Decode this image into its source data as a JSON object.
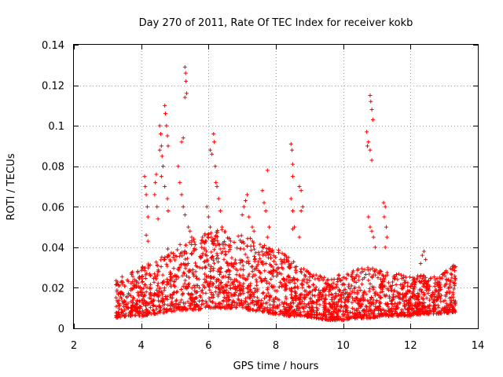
{
  "chart_data": {
    "type": "scatter",
    "title": "Day 270 of 2011, Rate Of TEC Index for receiver kokb",
    "xlabel": "GPS time / hours",
    "ylabel": "ROTI / TECUs",
    "xlim": [
      2,
      14
    ],
    "ylim": [
      0,
      0.14
    ],
    "xticks": [
      2,
      4,
      6,
      8,
      10,
      12,
      14
    ],
    "xtick_labels": [
      "2",
      "4",
      "6",
      "8",
      "10",
      "12",
      "14"
    ],
    "yticks": [
      0,
      0.02,
      0.04,
      0.06,
      0.08,
      0.1,
      0.12,
      0.14
    ],
    "ytick_labels": [
      "0",
      "0.02",
      "0.04",
      "0.06",
      "0.08",
      "0.1",
      "0.12",
      "0.14"
    ],
    "grid": true,
    "marker": "plus",
    "color": "#ff0000",
    "series": [
      {
        "name": "ROTI",
        "background_band": {
          "x_range": [
            3.25,
            13.35
          ],
          "envelope": [
            [
              3.3,
              0.005,
              0.025
            ],
            [
              3.6,
              0.006,
              0.027
            ],
            [
              4.0,
              0.006,
              0.03
            ],
            [
              4.4,
              0.007,
              0.035
            ],
            [
              4.8,
              0.008,
              0.04
            ],
            [
              5.2,
              0.009,
              0.042
            ],
            [
              5.6,
              0.009,
              0.045
            ],
            [
              6.0,
              0.01,
              0.048
            ],
            [
              6.4,
              0.01,
              0.05
            ],
            [
              6.8,
              0.01,
              0.047
            ],
            [
              7.2,
              0.009,
              0.045
            ],
            [
              7.6,
              0.008,
              0.042
            ],
            [
              8.0,
              0.007,
              0.04
            ],
            [
              8.4,
              0.006,
              0.035
            ],
            [
              8.8,
              0.006,
              0.03
            ],
            [
              9.2,
              0.005,
              0.027
            ],
            [
              9.6,
              0.004,
              0.025
            ],
            [
              10.0,
              0.004,
              0.027
            ],
            [
              10.4,
              0.005,
              0.03
            ],
            [
              10.8,
              0.005,
              0.03
            ],
            [
              11.2,
              0.006,
              0.028
            ],
            [
              11.6,
              0.006,
              0.027
            ],
            [
              12.0,
              0.006,
              0.026
            ],
            [
              12.4,
              0.007,
              0.027
            ],
            [
              12.8,
              0.007,
              0.025
            ],
            [
              13.3,
              0.008,
              0.032
            ]
          ]
        },
        "spikes": [
          [
            4.1,
            0.075
          ],
          [
            4.12,
            0.07
          ],
          [
            4.15,
            0.066
          ],
          [
            4.18,
            0.06
          ],
          [
            4.2,
            0.055
          ],
          [
            4.15,
            0.046
          ],
          [
            4.2,
            0.043
          ],
          [
            4.45,
            0.076
          ],
          [
            4.42,
            0.072
          ],
          [
            4.4,
            0.066
          ],
          [
            4.47,
            0.06
          ],
          [
            4.5,
            0.054
          ],
          [
            4.55,
            0.1
          ],
          [
            4.58,
            0.096
          ],
          [
            4.6,
            0.09
          ],
          [
            4.62,
            0.085
          ],
          [
            4.65,
            0.08
          ],
          [
            4.7,
            0.11
          ],
          [
            4.72,
            0.106
          ],
          [
            4.75,
            0.1
          ],
          [
            4.78,
            0.095
          ],
          [
            4.8,
            0.09
          ],
          [
            4.55,
            0.088
          ],
          [
            4.6,
            0.075
          ],
          [
            4.7,
            0.07
          ],
          [
            4.78,
            0.064
          ],
          [
            4.8,
            0.058
          ],
          [
            5.1,
            0.08
          ],
          [
            5.15,
            0.072
          ],
          [
            5.2,
            0.066
          ],
          [
            5.25,
            0.06
          ],
          [
            5.2,
            0.092
          ],
          [
            5.25,
            0.094
          ],
          [
            5.3,
            0.129
          ],
          [
            5.32,
            0.126
          ],
          [
            5.33,
            0.122
          ],
          [
            5.35,
            0.116
          ],
          [
            5.3,
            0.114
          ],
          [
            5.3,
            0.056
          ],
          [
            5.4,
            0.05
          ],
          [
            5.45,
            0.048
          ],
          [
            5.5,
            0.045
          ],
          [
            5.95,
            0.06
          ],
          [
            6.0,
            0.055
          ],
          [
            6.05,
            0.05
          ],
          [
            6.08,
            0.045
          ],
          [
            6.05,
            0.088
          ],
          [
            6.1,
            0.086
          ],
          [
            6.15,
            0.096
          ],
          [
            6.17,
            0.092
          ],
          [
            6.2,
            0.08
          ],
          [
            6.22,
            0.072
          ],
          [
            6.25,
            0.07
          ],
          [
            6.3,
            0.064
          ],
          [
            6.35,
            0.058
          ],
          [
            6.4,
            0.05
          ],
          [
            7.0,
            0.056
          ],
          [
            7.05,
            0.06
          ],
          [
            7.1,
            0.063
          ],
          [
            7.15,
            0.066
          ],
          [
            7.2,
            0.055
          ],
          [
            7.3,
            0.05
          ],
          [
            7.35,
            0.048
          ],
          [
            7.6,
            0.068
          ],
          [
            7.65,
            0.062
          ],
          [
            7.7,
            0.058
          ],
          [
            7.75,
            0.078
          ],
          [
            7.8,
            0.05
          ],
          [
            7.75,
            0.045
          ],
          [
            8.45,
            0.091
          ],
          [
            8.48,
            0.088
          ],
          [
            8.5,
            0.081
          ],
          [
            8.5,
            0.075
          ],
          [
            8.45,
            0.064
          ],
          [
            8.5,
            0.058
          ],
          [
            8.55,
            0.05
          ],
          [
            8.5,
            0.049
          ],
          [
            8.7,
            0.07
          ],
          [
            8.75,
            0.068
          ],
          [
            8.8,
            0.06
          ],
          [
            8.75,
            0.058
          ],
          [
            8.7,
            0.045
          ],
          [
            10.7,
            0.097
          ],
          [
            10.75,
            0.092
          ],
          [
            10.8,
            0.088
          ],
          [
            10.85,
            0.083
          ],
          [
            10.72,
            0.09
          ],
          [
            10.8,
            0.115
          ],
          [
            10.82,
            0.112
          ],
          [
            10.85,
            0.108
          ],
          [
            10.88,
            0.103
          ],
          [
            10.75,
            0.055
          ],
          [
            10.8,
            0.05
          ],
          [
            10.85,
            0.048
          ],
          [
            10.9,
            0.045
          ],
          [
            10.95,
            0.04
          ],
          [
            11.2,
            0.062
          ],
          [
            11.25,
            0.06
          ],
          [
            11.22,
            0.055
          ],
          [
            11.28,
            0.05
          ],
          [
            11.3,
            0.045
          ],
          [
            11.25,
            0.04
          ],
          [
            12.4,
            0.038
          ],
          [
            12.35,
            0.036
          ],
          [
            12.45,
            0.034
          ],
          [
            12.3,
            0.032
          ]
        ]
      }
    ]
  }
}
